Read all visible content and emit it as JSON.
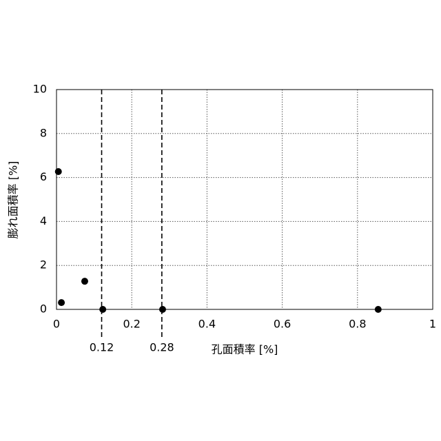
{
  "chart_data": {
    "type": "scatter",
    "x_label": "孔面積率 [%]",
    "y_label": "膨れ面積率 [%]",
    "series": [
      {
        "color": "#000000",
        "x": [
          0.005,
          0.013,
          0.075,
          0.123,
          0.282,
          0.855
        ],
        "values": [
          6.27,
          0.31,
          1.28,
          0.0,
          0.0,
          0.0
        ]
      }
    ],
    "xlim": [
      0,
      1
    ],
    "xticks": [
      0,
      0.2,
      0.4,
      0.6,
      0.8,
      1
    ],
    "ylim": [
      0,
      10
    ],
    "yticks": [
      0,
      2,
      4,
      6,
      8,
      10
    ],
    "grid": true,
    "reference_lines": [
      0.12,
      0.28
    ]
  }
}
